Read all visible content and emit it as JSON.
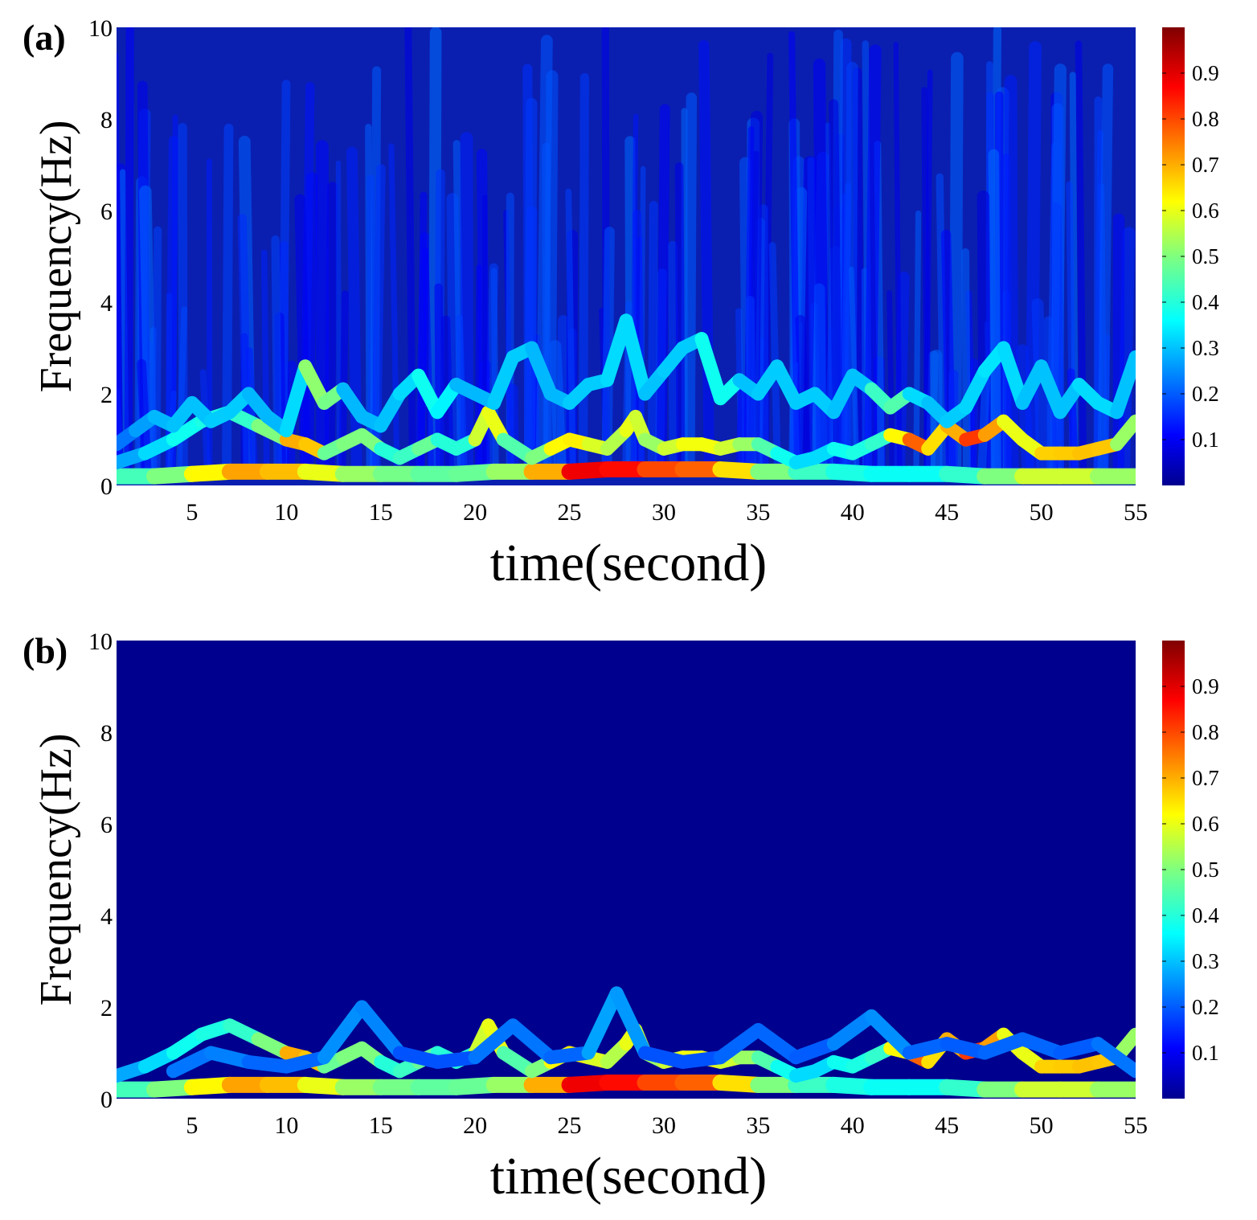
{
  "colors": {
    "background_a": "#0a1fb0",
    "background_b": "#00008e",
    "colormap": [
      "#00008f",
      "#0000ff",
      "#00ffff",
      "#7fff7f",
      "#ffff00",
      "#ff0000",
      "#800000"
    ]
  },
  "chart_data": [
    {
      "panel_label": "(a)",
      "type": "heatmap",
      "xlabel": "time(second)",
      "ylabel": "Frequency(Hz)",
      "xlim": [
        1,
        55
      ],
      "ylim": [
        0,
        10
      ],
      "x_ticks": [
        5,
        10,
        15,
        20,
        25,
        30,
        35,
        40,
        45,
        50,
        55
      ],
      "y_ticks": [
        0,
        2,
        4,
        6,
        8,
        10
      ],
      "colorbar": {
        "range": [
          0,
          1
        ],
        "ticks": [
          0.1,
          0.2,
          0.3,
          0.4,
          0.5,
          0.6,
          0.7,
          0.8,
          0.9
        ]
      },
      "background_noise": true,
      "series": [
        {
          "x": [
            1,
            3,
            5,
            7,
            9,
            11,
            13,
            15,
            17,
            19,
            21,
            23,
            25,
            27,
            29,
            31,
            33,
            35,
            37,
            39,
            41,
            43,
            45,
            47,
            49,
            51,
            53,
            55
          ],
          "y": [
            0.2,
            0.2,
            0.25,
            0.3,
            0.3,
            0.3,
            0.25,
            0.25,
            0.25,
            0.25,
            0.3,
            0.3,
            0.3,
            0.35,
            0.35,
            0.35,
            0.35,
            0.3,
            0.3,
            0.3,
            0.25,
            0.25,
            0.25,
            0.2,
            0.2,
            0.2,
            0.2,
            0.2
          ],
          "values": [
            0.42,
            0.45,
            0.55,
            0.7,
            0.72,
            0.65,
            0.55,
            0.5,
            0.48,
            0.45,
            0.5,
            0.55,
            0.85,
            0.92,
            0.8,
            0.8,
            0.75,
            0.55,
            0.45,
            0.4,
            0.38,
            0.36,
            0.38,
            0.45,
            0.55,
            0.6,
            0.55,
            0.5
          ]
        },
        {
          "x": [
            1,
            2.5,
            4,
            5.5,
            7,
            8.5,
            10,
            11,
            12,
            13,
            14,
            15,
            16,
            17,
            18,
            19,
            20,
            20.7,
            21.5,
            23,
            24,
            25,
            26,
            27,
            28,
            28.5,
            29,
            30,
            31,
            32,
            33,
            34,
            35,
            36,
            37,
            38,
            39,
            40,
            41,
            42,
            43,
            44,
            45,
            46,
            47,
            48,
            49,
            50,
            51,
            52,
            53,
            54,
            55
          ],
          "y": [
            0.5,
            0.7,
            1.0,
            1.4,
            1.6,
            1.3,
            1.0,
            0.9,
            0.7,
            0.9,
            1.1,
            0.8,
            0.6,
            0.8,
            1.0,
            0.8,
            1.0,
            1.6,
            1.0,
            0.6,
            0.8,
            1.0,
            0.9,
            0.8,
            1.2,
            1.5,
            1.0,
            0.8,
            0.9,
            0.9,
            0.8,
            0.9,
            0.9,
            0.7,
            0.5,
            0.6,
            0.8,
            0.7,
            0.9,
            1.1,
            1.0,
            0.8,
            1.3,
            1.0,
            1.1,
            1.4,
            1.0,
            0.7,
            0.7,
            0.7,
            0.8,
            0.9,
            1.4
          ],
          "values": [
            0.25,
            0.3,
            0.35,
            0.4,
            0.38,
            0.45,
            0.55,
            0.85,
            0.5,
            0.45,
            0.55,
            0.45,
            0.35,
            0.5,
            0.45,
            0.35,
            0.45,
            0.7,
            0.5,
            0.4,
            0.6,
            0.65,
            0.62,
            0.55,
            0.55,
            0.65,
            0.5,
            0.55,
            0.6,
            0.62,
            0.6,
            0.55,
            0.5,
            0.4,
            0.35,
            0.3,
            0.35,
            0.4,
            0.38,
            0.45,
            0.8,
            0.75,
            0.55,
            0.85,
            0.78,
            0.65,
            0.55,
            0.65,
            0.68,
            0.66,
            0.7,
            0.65,
            0.4
          ]
        },
        {
          "x": [
            1,
            2,
            3,
            4,
            5,
            6,
            7,
            8,
            9,
            10,
            11,
            12,
            13,
            14,
            15,
            16,
            17,
            18,
            19,
            20,
            21,
            22,
            23,
            24,
            25,
            26,
            27,
            28,
            29,
            30,
            31,
            32,
            33,
            34,
            35,
            36,
            37,
            38,
            39,
            40,
            41,
            42,
            43,
            44,
            45,
            46,
            47,
            48,
            49,
            50,
            51,
            52,
            53,
            54,
            55
          ],
          "y": [
            0.9,
            1.2,
            1.5,
            1.3,
            1.8,
            1.4,
            1.6,
            2.0,
            1.5,
            1.2,
            2.6,
            1.8,
            2.1,
            1.5,
            1.3,
            2.0,
            2.4,
            1.6,
            2.2,
            2.0,
            1.8,
            2.8,
            3.0,
            2.0,
            1.8,
            2.2,
            2.3,
            3.6,
            2.0,
            2.5,
            3.0,
            3.2,
            1.9,
            2.3,
            2.0,
            2.6,
            1.8,
            2.0,
            1.6,
            2.4,
            2.1,
            1.7,
            2.0,
            1.8,
            1.4,
            1.7,
            2.5,
            3.0,
            1.8,
            2.6,
            1.6,
            2.2,
            1.8,
            1.6,
            2.8
          ],
          "values": [
            0.2,
            0.25,
            0.28,
            0.3,
            0.3,
            0.3,
            0.32,
            0.3,
            0.28,
            0.3,
            0.35,
            0.68,
            0.3,
            0.28,
            0.3,
            0.3,
            0.35,
            0.4,
            0.3,
            0.28,
            0.3,
            0.32,
            0.3,
            0.28,
            0.3,
            0.32,
            0.3,
            0.35,
            0.3,
            0.3,
            0.32,
            0.3,
            0.45,
            0.3,
            0.3,
            0.32,
            0.3,
            0.32,
            0.3,
            0.3,
            0.3,
            0.55,
            0.35,
            0.3,
            0.3,
            0.32,
            0.32,
            0.35,
            0.3,
            0.3,
            0.3,
            0.3,
            0.35,
            0.3,
            0.3
          ]
        }
      ]
    },
    {
      "panel_label": "(b)",
      "type": "heatmap",
      "xlabel": "time(second)",
      "ylabel": "Frequency(Hz)",
      "xlim": [
        1,
        55
      ],
      "ylim": [
        0,
        10
      ],
      "x_ticks": [
        5,
        10,
        15,
        20,
        25,
        30,
        35,
        40,
        45,
        50,
        55
      ],
      "y_ticks": [
        0,
        2,
        4,
        6,
        8,
        10
      ],
      "colorbar": {
        "range": [
          0,
          1
        ],
        "ticks": [
          0.1,
          0.2,
          0.3,
          0.4,
          0.5,
          0.6,
          0.7,
          0.8,
          0.9
        ]
      },
      "background_noise": false,
      "series": [
        {
          "x": [
            1,
            3,
            5,
            7,
            9,
            11,
            13,
            15,
            17,
            19,
            21,
            23,
            25,
            27,
            29,
            31,
            33,
            35,
            37,
            39,
            41,
            43,
            45,
            47,
            49,
            51,
            53,
            55
          ],
          "y": [
            0.2,
            0.2,
            0.25,
            0.3,
            0.3,
            0.3,
            0.25,
            0.25,
            0.25,
            0.25,
            0.3,
            0.3,
            0.3,
            0.35,
            0.35,
            0.35,
            0.35,
            0.3,
            0.3,
            0.3,
            0.25,
            0.25,
            0.25,
            0.2,
            0.2,
            0.2,
            0.2,
            0.2
          ],
          "values": [
            0.42,
            0.45,
            0.55,
            0.7,
            0.72,
            0.65,
            0.55,
            0.5,
            0.48,
            0.45,
            0.5,
            0.55,
            0.85,
            0.92,
            0.8,
            0.8,
            0.75,
            0.55,
            0.45,
            0.4,
            0.38,
            0.36,
            0.38,
            0.45,
            0.55,
            0.6,
            0.55,
            0.5
          ]
        },
        {
          "x": [
            1,
            2.5,
            4,
            5.5,
            7,
            8.5,
            10,
            11,
            12,
            13,
            14,
            15,
            16,
            17,
            18,
            19,
            20,
            20.7,
            21.5,
            23,
            24,
            25,
            26,
            27,
            28,
            28.5,
            29,
            30,
            31,
            32,
            33,
            34,
            35,
            36,
            37,
            38,
            39,
            40,
            41,
            42,
            43,
            44,
            45,
            46,
            47,
            48,
            49,
            50,
            51,
            52,
            53,
            54,
            55
          ],
          "y": [
            0.5,
            0.7,
            1.0,
            1.4,
            1.6,
            1.3,
            1.0,
            0.9,
            0.7,
            0.9,
            1.1,
            0.8,
            0.6,
            0.8,
            1.0,
            0.8,
            1.0,
            1.6,
            1.0,
            0.6,
            0.8,
            1.0,
            0.9,
            0.8,
            1.2,
            1.5,
            1.0,
            0.8,
            0.9,
            0.9,
            0.8,
            0.9,
            0.9,
            0.7,
            0.5,
            0.6,
            0.8,
            0.7,
            0.9,
            1.1,
            1.0,
            0.8,
            1.3,
            1.0,
            1.1,
            1.4,
            1.0,
            0.7,
            0.7,
            0.7,
            0.8,
            0.9,
            1.4
          ],
          "values": [
            0.25,
            0.3,
            0.35,
            0.4,
            0.38,
            0.45,
            0.55,
            0.85,
            0.5,
            0.45,
            0.55,
            0.45,
            0.35,
            0.5,
            0.45,
            0.35,
            0.45,
            0.7,
            0.5,
            0.4,
            0.6,
            0.65,
            0.62,
            0.55,
            0.55,
            0.65,
            0.5,
            0.55,
            0.6,
            0.62,
            0.6,
            0.55,
            0.5,
            0.4,
            0.35,
            0.3,
            0.35,
            0.4,
            0.38,
            0.45,
            0.8,
            0.75,
            0.55,
            0.85,
            0.78,
            0.65,
            0.55,
            0.65,
            0.68,
            0.66,
            0.7,
            0.65,
            0.4
          ]
        },
        {
          "x": [
            4,
            6,
            8,
            10,
            12,
            14,
            16,
            18,
            20,
            22,
            24,
            26,
            27.5,
            29,
            31,
            33,
            35,
            37,
            39,
            41,
            43,
            45,
            47,
            49,
            51,
            53,
            55
          ],
          "y": [
            0.6,
            1.0,
            0.8,
            0.7,
            0.9,
            2.0,
            1.0,
            0.8,
            0.9,
            1.6,
            0.9,
            1.0,
            2.3,
            1.0,
            0.8,
            0.9,
            1.5,
            0.9,
            1.2,
            1.8,
            1.0,
            1.2,
            1.0,
            1.3,
            1.0,
            1.2,
            0.6
          ],
          "values": [
            0.2,
            0.25,
            0.22,
            0.2,
            0.22,
            0.28,
            0.2,
            0.18,
            0.2,
            0.25,
            0.2,
            0.22,
            0.32,
            0.2,
            0.18,
            0.2,
            0.22,
            0.2,
            0.2,
            0.28,
            0.22,
            0.2,
            0.2,
            0.22,
            0.2,
            0.2,
            0.25
          ]
        }
      ]
    }
  ]
}
